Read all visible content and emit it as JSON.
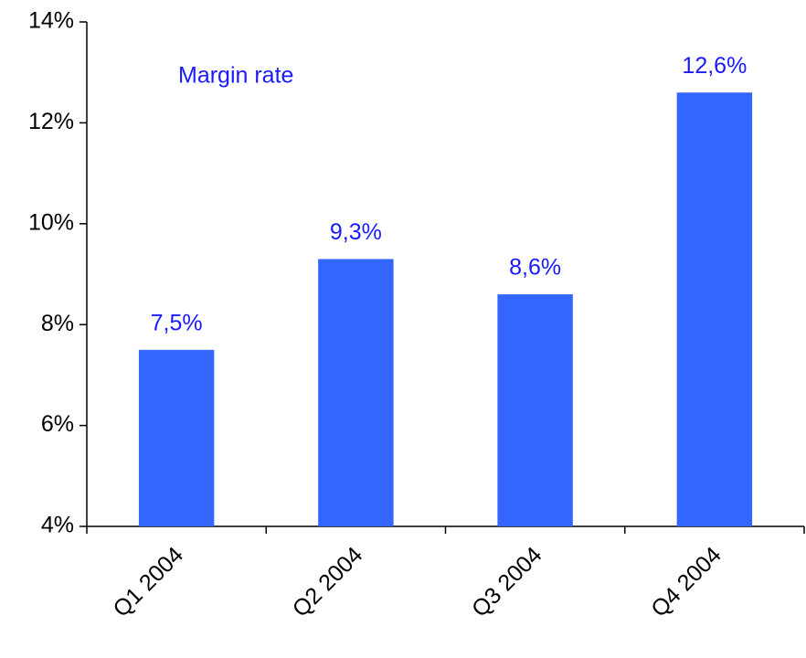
{
  "chart_data": {
    "type": "bar",
    "title": "Margin rate",
    "categories": [
      "Q1 2004",
      "Q2 2004",
      "Q3 2004",
      "Q4 2004"
    ],
    "values": [
      7.5,
      9.3,
      8.6,
      12.6
    ],
    "value_labels": [
      "7,5%",
      "9,3%",
      "8,6%",
      "12,6%"
    ],
    "color": "#3366ff",
    "ylim": [
      4,
      14
    ],
    "yticks": [
      {
        "value": 4,
        "label": "4%"
      },
      {
        "value": 6,
        "label": "6%"
      },
      {
        "value": 8,
        "label": "8%"
      },
      {
        "value": 10,
        "label": "10%"
      },
      {
        "value": 12,
        "label": "12%"
      },
      {
        "value": 14,
        "label": "14%"
      }
    ],
    "grid": false
  }
}
